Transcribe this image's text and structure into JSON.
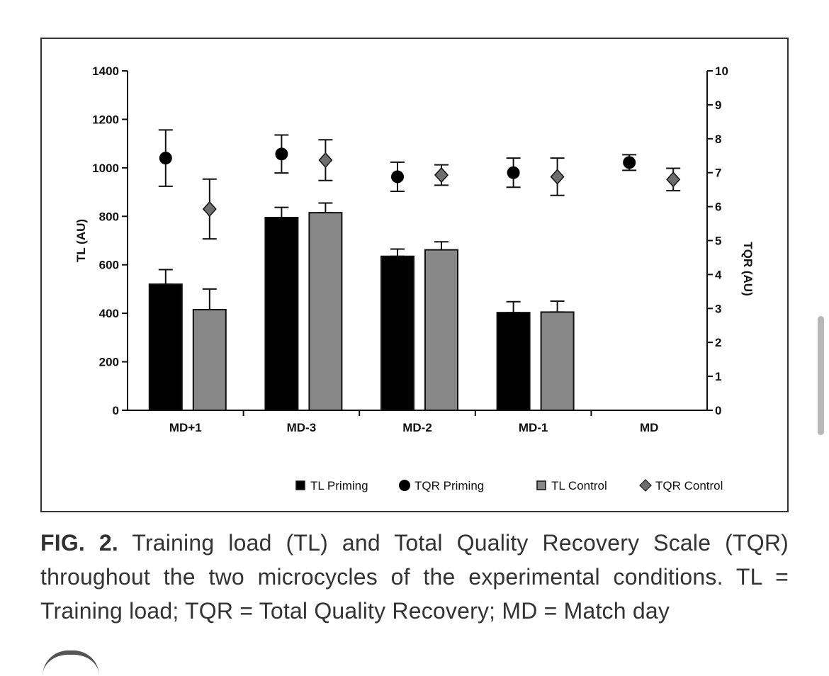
{
  "chart_data": {
    "type": "bar",
    "categories": [
      "MD+1",
      "MD-3",
      "MD-2",
      "MD-1",
      "MD"
    ],
    "left_axis": {
      "label": "TL (AU)",
      "range": [
        0,
        1400
      ],
      "ticks": [
        "0",
        "200",
        "400",
        "600",
        "800",
        "1000",
        "1200",
        "1400"
      ]
    },
    "right_axis": {
      "label": "TQR (AU)",
      "range": [
        0,
        10
      ],
      "ticks": [
        "0",
        "1",
        "2",
        "3",
        "4",
        "5",
        "6",
        "7",
        "8",
        "9",
        "10"
      ]
    },
    "series": [
      {
        "name": "TL Priming",
        "kind": "bar",
        "axis": "left",
        "color": "#000000",
        "values": [
          520,
          795,
          635,
          403,
          null
        ],
        "errors": [
          60,
          42,
          30,
          45,
          null
        ]
      },
      {
        "name": "TQR Priming",
        "kind": "circle",
        "axis": "right",
        "color": "#000000",
        "values": [
          7.43,
          7.55,
          6.88,
          7.0,
          7.3
        ],
        "errors": [
          0.83,
          0.56,
          0.43,
          0.43,
          0.23
        ]
      },
      {
        "name": "TL Control",
        "kind": "bar",
        "axis": "left",
        "color": "#888888",
        "values": [
          415,
          815,
          662,
          405,
          null
        ],
        "errors": [
          85,
          40,
          33,
          45,
          null
        ]
      },
      {
        "name": "TQR Control",
        "kind": "diamond",
        "axis": "right",
        "color": "#6e6e6e",
        "values": [
          5.93,
          7.37,
          6.93,
          6.88,
          6.8
        ],
        "errors": [
          0.88,
          0.6,
          0.3,
          0.55,
          0.33
        ]
      }
    ],
    "legend_position": "bottom",
    "grid": false
  },
  "caption": {
    "label": "FIG. 2.",
    "text": " Training load (TL) and Total Quality Recovery Scale (TQR) throughout the two microcycles of the experimental conditions. TL = Training load; TQR = Total Quality Recovery; MD = Match day"
  }
}
